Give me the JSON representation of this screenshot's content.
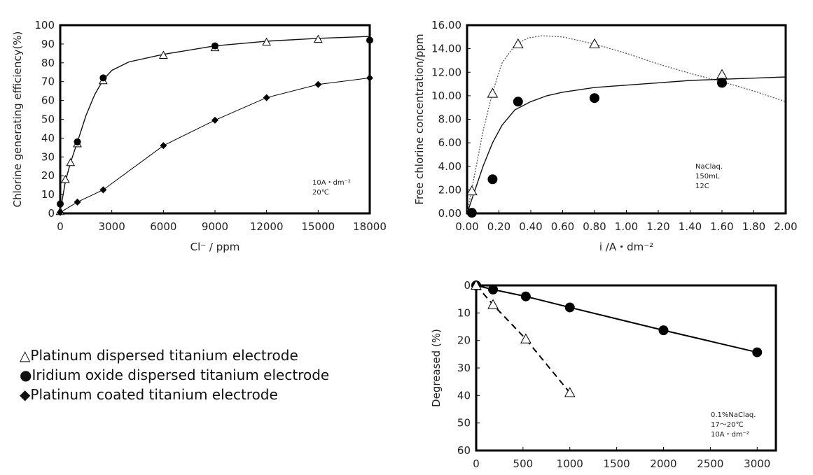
{
  "legend": [
    {
      "symbol": "△",
      "label": "Platinum dispersed titanium electrode"
    },
    {
      "symbol": "●",
      "label": "Iridium oxide dispersed titanium electrode"
    },
    {
      "symbol": "◆",
      "label": "Platinum coated titanium electrode"
    }
  ],
  "chart_data": [
    {
      "type": "scatter",
      "xlabel": "Cl⁻ / ppm",
      "ylabel": "Chlorine generating efficiency(%)",
      "xlim": [
        0,
        18000
      ],
      "ylim": [
        0,
        100
      ],
      "xticks": [
        0,
        3000,
        6000,
        9000,
        12000,
        15000,
        18000
      ],
      "yticks": [
        0,
        10,
        20,
        30,
        40,
        50,
        60,
        70,
        80,
        90,
        100
      ],
      "annotation": [
        "10A・dm⁻²",
        "20℃"
      ],
      "grid": false,
      "series": [
        {
          "marker": "triangle",
          "x": [
            0,
            300,
            600,
            1000,
            2500,
            6000,
            9000,
            12000,
            15000
          ],
          "y": [
            1,
            18,
            27,
            37,
            70.5,
            84,
            88,
            91,
            92.5
          ]
        },
        {
          "marker": "circle",
          "x": [
            0,
            1000,
            2500,
            9000,
            18000
          ],
          "y": [
            5,
            38,
            72,
            89,
            92
          ]
        },
        {
          "marker": "diamond",
          "line": "solid",
          "x": [
            0,
            1000,
            2500,
            6000,
            9000,
            12000,
            15000,
            18000
          ],
          "y": [
            0.5,
            6,
            12.5,
            36,
            49.5,
            61.5,
            68.5,
            72
          ]
        }
      ],
      "curves": [
        {
          "style": "solid",
          "x": [
            0,
            300,
            600,
            1000,
            1500,
            2000,
            2500,
            3000,
            4000,
            6000,
            9000,
            12000,
            15000,
            18000
          ],
          "y": [
            1,
            17,
            27,
            38,
            52,
            63,
            71,
            76,
            80.5,
            84.5,
            89,
            91.5,
            93,
            94
          ]
        }
      ]
    },
    {
      "type": "scatter",
      "xlabel": "i /A・dm⁻²",
      "ylabel": "Free chlorine concentration/ppm",
      "xlim": [
        0,
        2
      ],
      "ylim": [
        0,
        16
      ],
      "xticks": [
        "0.00",
        "0.20",
        "0.40",
        "0.60",
        "0.80",
        "1.00",
        "1.20",
        "1.40",
        "1.60",
        "1.80",
        "2.00"
      ],
      "yticks": [
        "0.00",
        "2.00",
        "4.00",
        "6.00",
        "8.00",
        "10.00",
        "12.00",
        "14.00",
        "16.00"
      ],
      "annotation": [
        "NaClaq.",
        "150mL",
        "12C"
      ],
      "grid": false,
      "series": [
        {
          "marker": "triangle",
          "x": [
            0.03,
            0.16,
            0.32,
            0.8,
            1.6
          ],
          "y": [
            1.9,
            10.2,
            14.4,
            14.4,
            11.8
          ]
        },
        {
          "marker": "circle",
          "x": [
            0.03,
            0.16,
            0.32,
            0.8,
            1.6
          ],
          "y": [
            0.05,
            2.9,
            9.5,
            9.8,
            11.1
          ]
        }
      ],
      "curves": [
        {
          "style": "dotted",
          "x": [
            0,
            0.05,
            0.1,
            0.16,
            0.22,
            0.3,
            0.38,
            0.47,
            0.6,
            0.8,
            1.0,
            1.2,
            1.4,
            1.6,
            1.8,
            2.0
          ],
          "y": [
            0,
            3.5,
            7,
            10.3,
            12.8,
            14.3,
            14.9,
            15.1,
            15.0,
            14.4,
            13.6,
            12.7,
            11.9,
            11.2,
            10.4,
            9.5
          ]
        },
        {
          "style": "solid",
          "x": [
            0,
            0.05,
            0.1,
            0.16,
            0.22,
            0.3,
            0.4,
            0.5,
            0.6,
            0.8,
            1.0,
            1.2,
            1.4,
            1.6,
            1.8,
            2.0
          ],
          "y": [
            0,
            2,
            4,
            6,
            7.5,
            8.8,
            9.5,
            10.0,
            10.3,
            10.7,
            10.9,
            11.1,
            11.3,
            11.4,
            11.5,
            11.6
          ]
        }
      ]
    },
    {
      "type": "line",
      "xlabel": "",
      "ylabel": "Degreased (%)",
      "xlim": [
        0,
        3200
      ],
      "ylim": [
        0,
        60
      ],
      "y_inverted": true,
      "xticks": [
        0,
        500,
        1000,
        1500,
        2000,
        2500,
        3000
      ],
      "yticks": [
        0,
        10,
        20,
        30,
        40,
        50,
        60
      ],
      "annotation": [
        "0.1%NaClaq.",
        "17〜20℃",
        "10A・dm⁻²"
      ],
      "grid": false,
      "series": [
        {
          "marker": "circle",
          "line": "solid",
          "x": [
            0,
            180,
            530,
            1000,
            2000,
            3000
          ],
          "y": [
            0,
            1.5,
            4,
            8,
            16.3,
            24.3
          ]
        },
        {
          "marker": "triangle",
          "line": "dashed",
          "x": [
            0,
            180,
            530,
            1000
          ],
          "y": [
            0,
            7,
            19.5,
            39
          ]
        }
      ]
    }
  ]
}
